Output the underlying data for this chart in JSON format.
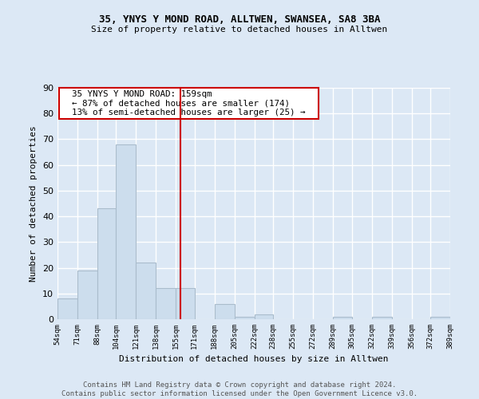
{
  "title1": "35, YNYS Y MOND ROAD, ALLTWEN, SWANSEA, SA8 3BA",
  "title2": "Size of property relative to detached houses in Alltwen",
  "xlabel": "Distribution of detached houses by size in Alltwen",
  "ylabel": "Number of detached properties",
  "bar_color": "#ccdded",
  "bar_edge_color": "#aabccc",
  "bins": [
    54,
    71,
    88,
    104,
    121,
    138,
    155,
    171,
    188,
    205,
    222,
    238,
    255,
    272,
    289,
    305,
    322,
    339,
    356,
    372,
    389
  ],
  "counts": [
    8,
    19,
    43,
    68,
    22,
    12,
    12,
    0,
    6,
    1,
    2,
    0,
    0,
    0,
    1,
    0,
    1,
    0,
    0,
    1
  ],
  "property_size": 159,
  "vline_color": "#cc0000",
  "annotation_text": "  35 YNYS Y MOND ROAD: 159sqm  \n  ← 87% of detached houses are smaller (174)  \n  13% of semi-detached houses are larger (25) →  ",
  "annotation_box_color": "#ffffff",
  "annotation_box_edge": "#cc0000",
  "footer_text": "Contains HM Land Registry data © Crown copyright and database right 2024.\nContains public sector information licensed under the Open Government Licence v3.0.",
  "ylim": [
    0,
    90
  ],
  "background_color": "#dce8f5",
  "grid_color": "#ffffff"
}
